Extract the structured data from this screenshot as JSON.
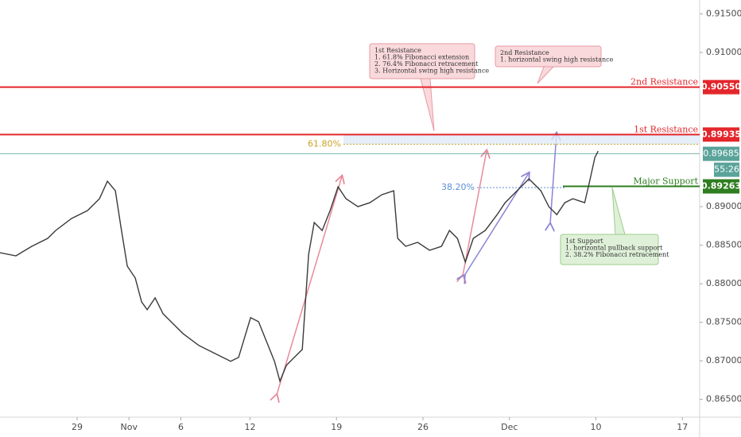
{
  "chart_data": {
    "type": "line",
    "series": [
      {
        "color": "#3a3a3a",
        "x": [
          -4.46,
          -3.54,
          -2.62,
          -1.7,
          -1.24,
          -0.32,
          0.6,
          1.29,
          1.75,
          2.21,
          2.53,
          2.9,
          3.36,
          3.73,
          4.05,
          4.51,
          4.97,
          5.43,
          6.12,
          7.04,
          7.96,
          8.88,
          9.34,
          10.03,
          10.49,
          10.95,
          11.41,
          11.73,
          12.1,
          12.56,
          13.02,
          13.39,
          13.71,
          14.17,
          14.63,
          15.09,
          15.55,
          16.24,
          16.93,
          17.62,
          18.31,
          18.54,
          19.0,
          19.69,
          20.38,
          21.07,
          21.53,
          21.99,
          22.45,
          22.91,
          23.6,
          24.29,
          24.75,
          25.44,
          26.13,
          26.82,
          27.28,
          27.74,
          28.2,
          28.66,
          29.35,
          29.67,
          29.94,
          30.13
        ],
        "values": [
          0.88403,
          0.88362,
          0.88486,
          0.88589,
          0.88691,
          0.88846,
          0.88949,
          0.89103,
          0.89329,
          0.89206,
          0.88743,
          0.88228,
          0.88074,
          0.87765,
          0.87663,
          0.87817,
          0.87611,
          0.87508,
          0.87354,
          0.872,
          0.87097,
          0.86994,
          0.87045,
          0.8756,
          0.87508,
          0.87251,
          0.86994,
          0.86737,
          0.86942,
          0.87045,
          0.87148,
          0.88383,
          0.88794,
          0.88691,
          0.88949,
          0.89257,
          0.89103,
          0.89,
          0.89051,
          0.89154,
          0.89206,
          0.88589,
          0.88486,
          0.88537,
          0.88434,
          0.88486,
          0.88691,
          0.88589,
          0.8828,
          0.88589,
          0.88691,
          0.88897,
          0.89051,
          0.89206,
          0.8936,
          0.89206,
          0.89,
          0.88897,
          0.89051,
          0.89103,
          0.89051,
          0.8936,
          0.89638,
          0.8972
        ]
      }
    ],
    "xlim": [
      -4.46,
      36.0
    ],
    "xticks": [
      {
        "value": 0,
        "label": "29"
      },
      {
        "value": 3,
        "label": "Nov"
      },
      {
        "value": 6,
        "label": "6"
      },
      {
        "value": 10,
        "label": "12"
      },
      {
        "value": 15,
        "label": "19"
      },
      {
        "value": 20,
        "label": "26"
      },
      {
        "value": 25,
        "label": "Dec"
      },
      {
        "value": 30,
        "label": "10"
      },
      {
        "value": 35,
        "label": "17"
      }
    ],
    "ylim": [
      0.8627,
      0.9168
    ],
    "yticks": [
      {
        "value": 0.915,
        "label": "0.91500"
      },
      {
        "value": 0.91,
        "label": "0.91000"
      },
      {
        "value": 0.89,
        "label": "0.89000"
      },
      {
        "value": 0.885,
        "label": "0.88500"
      },
      {
        "value": 0.88,
        "label": "0.88000"
      },
      {
        "value": 0.875,
        "label": "0.87500"
      },
      {
        "value": 0.87,
        "label": "0.87000"
      },
      {
        "value": 0.865,
        "label": "0.86500"
      }
    ],
    "levels": [
      {
        "name": "2nd Resistance",
        "value": 0.9055,
        "value_label": "0.90550",
        "color": "#e3262b"
      },
      {
        "name": "1st Resistance",
        "value": 0.89935,
        "value_label": "0.89935",
        "color": "#e3262b"
      },
      {
        "name": "Major Support",
        "value": 0.89263,
        "value_label": "0.89263",
        "color": "#2e7d1f"
      }
    ],
    "last_price": {
      "value": 0.89685,
      "value_label": "0.89685",
      "countdown": "55:26",
      "color": "#5aa39a"
    },
    "fib_levels": [
      {
        "label": "61.80%",
        "value": 0.8981,
        "color": "#c9a227"
      },
      {
        "label": "38.20%",
        "value": 0.89247,
        "color": "#5b8fd6"
      }
    ],
    "annotations": [
      {
        "lines": [
          "1st Resistance",
          "1. 61.8% Fibonacci extension",
          "2. 76.4% Fibonacci retracement",
          "3. Horizontal swing high resistance"
        ]
      },
      {
        "lines": [
          "2nd Resistance",
          "1. horizontal swing high resistance"
        ]
      },
      {
        "lines": [
          "1st Support",
          "1. horizontal pullback support",
          "2. 38.2% Fibonacci retracement"
        ]
      }
    ]
  }
}
